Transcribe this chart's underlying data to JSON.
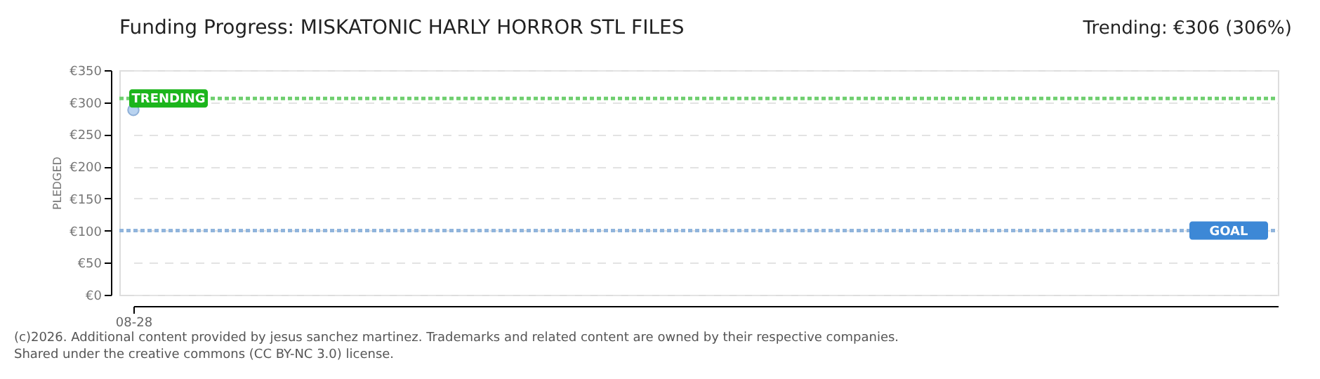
{
  "chart_data": {
    "type": "scatter",
    "title": "Funding Progress: MISKATONIC HARLY HORROR STL FILES",
    "subtitle": "Trending: €306 (306%)",
    "ylabel": "PLEDGED",
    "categories": [
      "08-28"
    ],
    "series": [
      {
        "color": "#b9d3f0",
        "values": [
          288
        ]
      }
    ],
    "marker": "circle",
    "ylim": [
      0,
      350
    ],
    "yticks": [
      {
        "value": 0,
        "label": "€0"
      },
      {
        "value": 50,
        "label": "€50"
      },
      {
        "value": 100,
        "label": "€100"
      },
      {
        "value": 150,
        "label": "€150"
      },
      {
        "value": 200,
        "label": "€200"
      },
      {
        "value": 250,
        "label": "€250"
      },
      {
        "value": 300,
        "label": "€300"
      },
      {
        "value": 350,
        "label": "€350"
      }
    ],
    "grid": "y",
    "ref_lines": [
      {
        "axis": "y",
        "value": 306,
        "label": "TRENDING",
        "color": "#6fcf6f",
        "line_style": "dotted"
      },
      {
        "axis": "y",
        "value": 100,
        "label": "GOAL",
        "color": "#90b4dc",
        "line_style": "dotted"
      }
    ],
    "annotations": [
      "(c)2026. Additional content provided by jesus sanchez martinez. Trademarks and related content are owned by their respective companies.",
      "Shared under the creative commons (CC BY-NC 3.0) license."
    ]
  }
}
